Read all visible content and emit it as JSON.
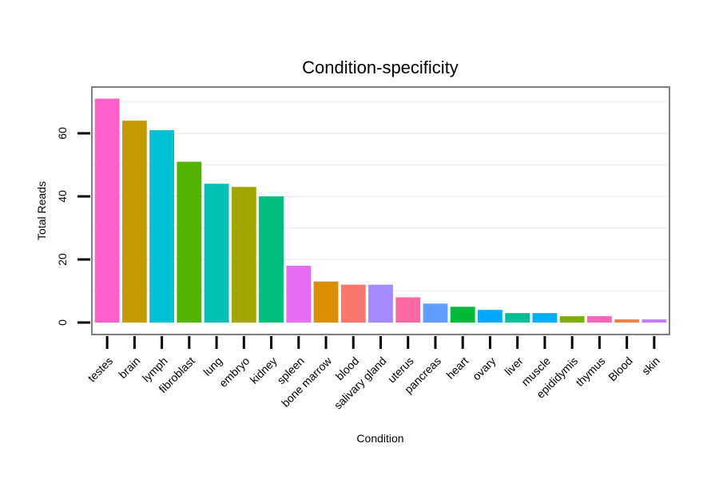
{
  "chart_data": {
    "type": "bar",
    "title": "Condition-specificity",
    "xlabel": "Condition",
    "ylabel": "Total Reads",
    "ylim": [
      0,
      72
    ],
    "yticks": [
      0,
      20,
      40,
      60
    ],
    "grid": true,
    "categories": [
      "testes",
      "brain",
      "lymph",
      "fibroblast",
      "lung",
      "embryo",
      "kidney",
      "spleen",
      "bone marrow",
      "blood",
      "salivary gland",
      "uterus",
      "pancreas",
      "heart",
      "ovary",
      "liver",
      "muscle",
      "epididymis",
      "thymus",
      "Blood",
      "skin"
    ],
    "values": [
      71,
      64,
      61,
      51,
      44,
      43,
      40,
      18,
      13,
      12,
      12,
      8,
      6,
      5,
      4,
      3,
      3,
      2,
      2,
      1,
      1
    ],
    "colors": [
      "#FF61CC",
      "#C49A00",
      "#00C1D4",
      "#53B400",
      "#00C0B8",
      "#A3A500",
      "#00BF7D",
      "#E76BF3",
      "#DB8E00",
      "#F8766D",
      "#A58AFF",
      "#FF67A4",
      "#619CFF",
      "#00BA38",
      "#00A9FF",
      "#00C097",
      "#00B0F6",
      "#7CAE00",
      "#FF62BC",
      "#ED813E",
      "#C77CFF"
    ]
  }
}
